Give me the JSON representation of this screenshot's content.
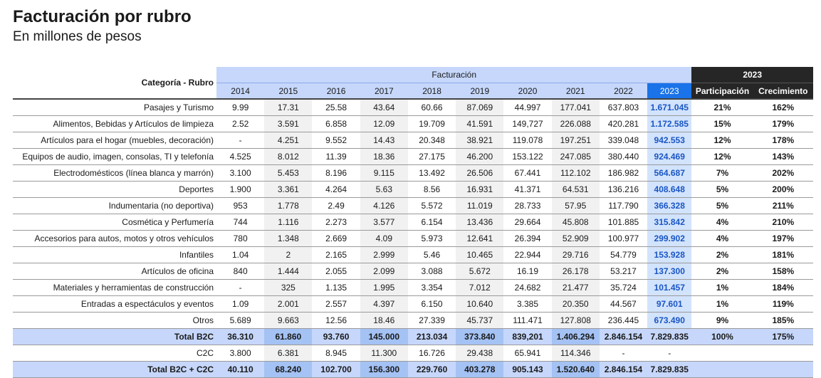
{
  "header": {
    "title": "Facturación por rubro",
    "subtitle": "En millones de pesos"
  },
  "table": {
    "category_header": "Categoría - Rubro",
    "group_billing": "Facturación",
    "group_year": "2023",
    "years": [
      "2014",
      "2015",
      "2016",
      "2017",
      "2018",
      "2019",
      "2020",
      "2021",
      "2022",
      "2023"
    ],
    "metrics": [
      "Participación",
      "Crecimiento"
    ],
    "rows": [
      {
        "category": "Pasajes y Turismo",
        "values": [
          "9.99",
          "17.31",
          "25.58",
          "43.64",
          "60.66",
          "87.069",
          "44.997",
          "177.041",
          "637.803",
          "1.671.045"
        ],
        "share": "21%",
        "growth": "162%"
      },
      {
        "category": "Alimentos, Bebidas y Artículos de limpieza",
        "values": [
          "2.52",
          "3.591",
          "6.858",
          "12.09",
          "19.709",
          "41.591",
          "149,727",
          "226.088",
          "420.281",
          "1.172.585"
        ],
        "share": "15%",
        "growth": "179%"
      },
      {
        "category": "Artículos para el hogar (muebles, decoración)",
        "values": [
          "-",
          "4.251",
          "9.552",
          "14.43",
          "20.348",
          "38.921",
          "119.078",
          "197.251",
          "339.048",
          "942.553"
        ],
        "share": "12%",
        "growth": "178%"
      },
      {
        "category": "Equipos de audio, imagen, consolas, TI y telefonía",
        "values": [
          "4.525",
          "8.012",
          "11.39",
          "18.36",
          "27.175",
          "46.200",
          "153.122",
          "247.085",
          "380.440",
          "924.469"
        ],
        "share": "12%",
        "growth": "143%"
      },
      {
        "category": "Electrodomésticos (línea blanca y marrón)",
        "values": [
          "3.100",
          "5.453",
          "8.196",
          "9.115",
          "13.492",
          "26.506",
          "67.441",
          "112.102",
          "186.982",
          "564.687"
        ],
        "share": "7%",
        "growth": "202%"
      },
      {
        "category": "Deportes",
        "values": [
          "1.900",
          "3.361",
          "4.264",
          "5.63",
          "8.56",
          "16.931",
          "41.371",
          "64.531",
          "136.216",
          "408.648"
        ],
        "share": "5%",
        "growth": "200%"
      },
      {
        "category": "Indumentaria (no deportiva)",
        "values": [
          "953",
          "1.778",
          "2.49",
          "4.126",
          "5.572",
          "11.019",
          "28.733",
          "57.95",
          "117.790",
          "366.328"
        ],
        "share": "5%",
        "growth": "211%"
      },
      {
        "category": "Cosmética y Perfumería",
        "values": [
          "744",
          "1.116",
          "2.273",
          "3.577",
          "6.154",
          "13.436",
          "29.664",
          "45.808",
          "101.885",
          "315.842"
        ],
        "share": "4%",
        "growth": "210%"
      },
      {
        "category": "Accesorios para autos, motos y otros vehículos",
        "values": [
          "780",
          "1.348",
          "2.669",
          "4.09",
          "5.973",
          "12.641",
          "26.394",
          "52.909",
          "100.977",
          "299.902"
        ],
        "share": "4%",
        "growth": "197%"
      },
      {
        "category": "Infantiles",
        "values": [
          "1.04",
          "2",
          "2.165",
          "2.999",
          "5.46",
          "10.465",
          "22.944",
          "29.716",
          "54.779",
          "153.928"
        ],
        "share": "2%",
        "growth": "181%"
      },
      {
        "category": "Artículos de oficina",
        "values": [
          "840",
          "1.444",
          "2.055",
          "2.099",
          "3.088",
          "5.672",
          "16.19",
          "26.178",
          "53.217",
          "137.300"
        ],
        "share": "2%",
        "growth": "158%"
      },
      {
        "category": "Materiales y herramientas de construcción",
        "values": [
          "-",
          "325",
          "1.135",
          "1.995",
          "3.354",
          "7.012",
          "24.682",
          "21.477",
          "35.724",
          "101.457"
        ],
        "share": "1%",
        "growth": "184%"
      },
      {
        "category": "Entradas a espectáculos y eventos",
        "values": [
          "1.09",
          "2.001",
          "2.557",
          "4.397",
          "6.150",
          "10.640",
          "3.385",
          "20.350",
          "44.567",
          "97.601"
        ],
        "share": "1%",
        "growth": "119%"
      },
      {
        "category": "Otros",
        "values": [
          "5.689",
          "9.663",
          "12.56",
          "18.46",
          "27.339",
          "45.737",
          "111.471",
          "127.808",
          "236.445",
          "673.490"
        ],
        "share": "9%",
        "growth": "185%"
      }
    ],
    "total_b2c": {
      "category": "Total B2C",
      "values": [
        "36.310",
        "61.860",
        "93.760",
        "145.000",
        "213.034",
        "373.840",
        "839,201",
        "1.406.294",
        "2.846.154",
        "7.829.835"
      ],
      "share": "100%",
      "growth": "175%"
    },
    "c2c": {
      "category": "C2C",
      "values": [
        "3.800",
        "6.381",
        "8.945",
        "11.300",
        "16.726",
        "29.438",
        "65.941",
        "114.346",
        "-",
        "-"
      ],
      "share": "",
      "growth": ""
    },
    "total_all": {
      "category": "Total B2C + C2C",
      "values": [
        "40.110",
        "68.240",
        "102.700",
        "156.300",
        "229.760",
        "403.278",
        "905.143",
        "1.520.640",
        "2.846.154",
        "7.829.835"
      ],
      "share": "",
      "growth": ""
    }
  }
}
